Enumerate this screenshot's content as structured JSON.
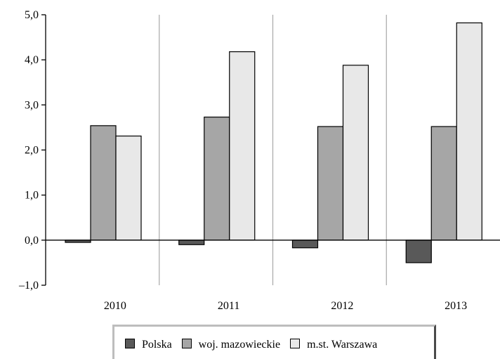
{
  "chart_data": {
    "type": "bar",
    "categories": [
      "2010",
      "2011",
      "2012",
      "2013"
    ],
    "series": [
      {
        "name": "Polska",
        "values": [
          -0.05,
          -0.1,
          -0.17,
          -0.5
        ],
        "color": "#595959"
      },
      {
        "name": "woj. mazowieckie",
        "values": [
          2.54,
          2.73,
          2.52,
          2.52
        ],
        "color": "#a6a6a6"
      },
      {
        "name": "m.st. Warszawa",
        "values": [
          2.31,
          4.18,
          3.88,
          4.82
        ],
        "color": "#e8e8e8"
      }
    ],
    "ylim": [
      -1.0,
      5.0
    ],
    "yticks": [
      -1.0,
      0.0,
      1.0,
      2.0,
      3.0,
      4.0,
      5.0
    ],
    "ytick_labels": [
      "–1,0",
      "0,0",
      "1,0",
      "2,0",
      "3,0",
      "4,0",
      "5,0"
    ],
    "grid": "vertical category separators",
    "legend_position": "bottom",
    "title": "",
    "xlabel": "",
    "ylabel": ""
  }
}
